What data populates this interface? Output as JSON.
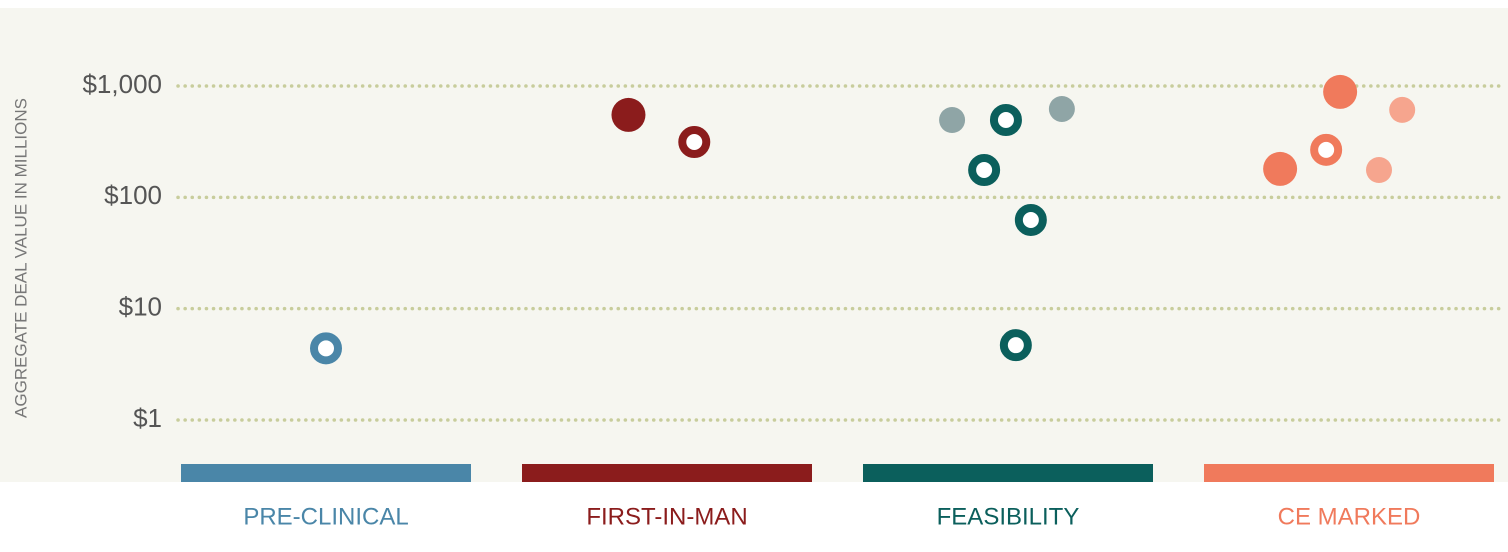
{
  "chart_data": {
    "type": "scatter",
    "y_label": "AGGREGATE DEAL VALUE IN MILLIONS",
    "categories": [
      "PRE-CLINICAL",
      "FIRST-IN-MAN",
      "FEASIBILITY",
      "CE MARKED"
    ],
    "category_colors": [
      "#4a86a8",
      "#8b1c1c",
      "#0b5f5c",
      "#f07a5c"
    ],
    "log_scale": true,
    "grid": true,
    "xlim": [
      0,
      4
    ],
    "ylim": [
      1,
      1000
    ],
    "yticks": [
      {
        "value": 1,
        "label": "$1"
      },
      {
        "value": 10,
        "label": "$10"
      },
      {
        "value": 100,
        "label": "$100"
      },
      {
        "value": 1000,
        "label": "$1,000"
      }
    ],
    "series": [
      {
        "color": "#4a86a8",
        "style": "ring",
        "x": [
          0.5
        ],
        "values": [
          4.4
        ]
      },
      {
        "color": "#8b1c1c",
        "style": "solid",
        "x": [
          1.387
        ],
        "values": [
          550
        ]
      },
      {
        "color": "#8b1c1c",
        "style": "ring",
        "x": [
          1.58
        ],
        "values": [
          314
        ]
      },
      {
        "color": "#8fa5a6",
        "style": "light",
        "x": [
          2.336,
          2.658
        ],
        "values": [
          495,
          622
        ]
      },
      {
        "color": "#0b5f5c",
        "style": "ring",
        "x": [
          2.494,
          2.43,
          2.567,
          2.523
        ],
        "values": [
          495,
          176,
          62.6,
          4.7
        ]
      },
      {
        "color": "#f07a5c",
        "style": "solid",
        "x": [
          3.474,
          3.298
        ],
        "values": [
          885,
          180
        ]
      },
      {
        "color": "#f07a5c",
        "style": "ring",
        "x": [
          3.433
        ],
        "values": [
          267
        ]
      },
      {
        "color": "#f6a58e",
        "style": "light",
        "x": [
          3.656,
          3.588
        ],
        "values": [
          610,
          176
        ]
      }
    ]
  }
}
